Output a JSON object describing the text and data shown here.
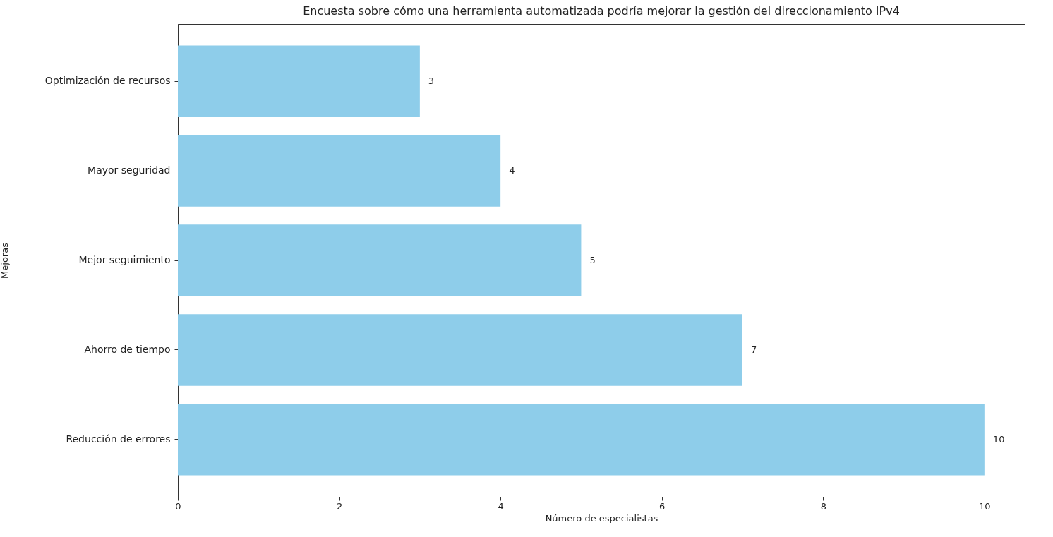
{
  "chart_data": {
    "type": "bar",
    "orientation": "horizontal",
    "title": "Encuesta sobre cómo una herramienta automatizada podría mejorar la gestión del direccionamiento IPv4",
    "xlabel": "Número de especialistas",
    "ylabel": "Mejoras",
    "categories": [
      "Optimización de recursos",
      "Mayor seguridad",
      "Mejor seguimiento",
      "Ahorro de tiempo",
      "Reducción de errores"
    ],
    "values": [
      3,
      4,
      5,
      7,
      10
    ],
    "color": "#8ecdea",
    "xlim": [
      0,
      10.5
    ],
    "xticks": [
      0,
      2,
      4,
      6,
      8,
      10
    ],
    "grid": false,
    "data_labels": true
  }
}
